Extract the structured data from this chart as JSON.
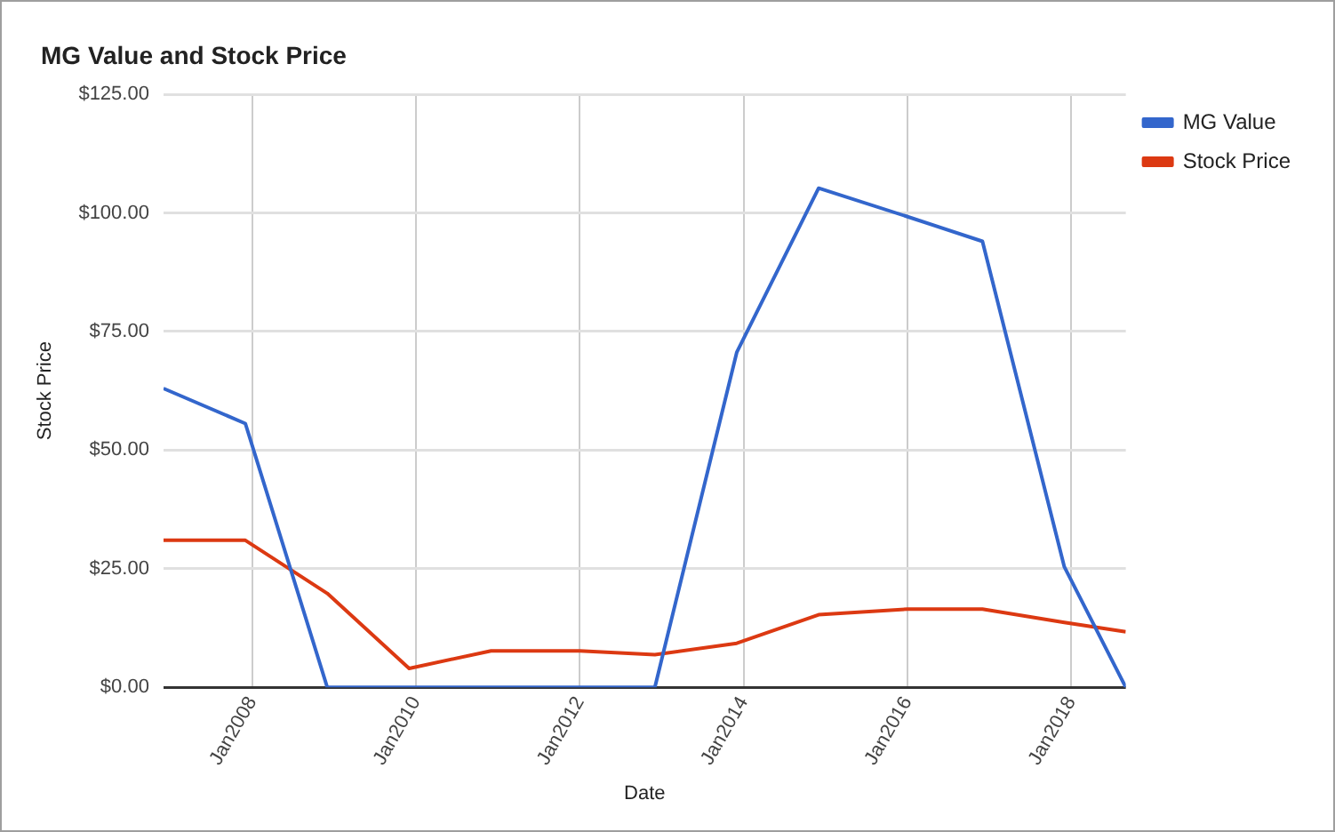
{
  "chart_data": {
    "type": "line",
    "title": "MG Value and Stock Price",
    "xlabel": "Date",
    "ylabel": "Stock Price",
    "x": [
      "2006-12",
      "2007-12",
      "2008-12",
      "2009-12",
      "2010-12",
      "2012-01",
      "2012-12",
      "2013-12",
      "2014-12",
      "2016-01",
      "2016-12",
      "2017-12",
      "2018-09"
    ],
    "series": [
      {
        "name": "MG Value",
        "color": "#3366cc",
        "values": [
          63,
          55.6,
          0,
          0,
          0,
          0,
          0,
          70.6,
          105.2,
          99.2,
          94,
          25.4,
          0
        ]
      },
      {
        "name": "Stock Price",
        "color": "#dc3912",
        "values": [
          31,
          31,
          19.8,
          4,
          7.7,
          7.7,
          6.9,
          9.3,
          15.3,
          16.5,
          16.5,
          13.7,
          11.7
        ]
      }
    ],
    "xlim": [
      "2006-12",
      "2018-09"
    ],
    "xticks": [
      {
        "value": "2008-01",
        "label": "Jan2008"
      },
      {
        "value": "2010-01",
        "label": "Jan2010"
      },
      {
        "value": "2012-01",
        "label": "Jan2012"
      },
      {
        "value": "2014-01",
        "label": "Jan2014"
      },
      {
        "value": "2016-01",
        "label": "Jan2016"
      },
      {
        "value": "2018-01",
        "label": "Jan2018"
      }
    ],
    "ylim": [
      0,
      125
    ],
    "yticks": [
      {
        "value": 0,
        "label": "$0.00"
      },
      {
        "value": 25,
        "label": "$25.00"
      },
      {
        "value": 50,
        "label": "$50.00"
      },
      {
        "value": 75,
        "label": "$75.00"
      },
      {
        "value": 100,
        "label": "$100.00"
      },
      {
        "value": 125,
        "label": "$125.00"
      }
    ],
    "grid": true,
    "legend": "top right",
    "marker": "none",
    "line_style": "solid"
  }
}
